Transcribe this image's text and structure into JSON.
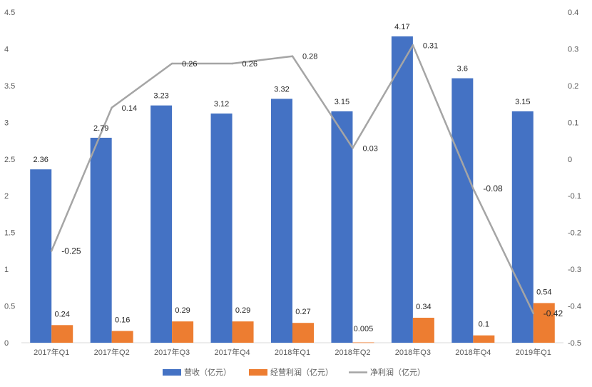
{
  "chart_data": {
    "type": "bar",
    "categories": [
      "2017年Q1",
      "2017年Q2",
      "2017年Q3",
      "2017年Q4",
      "2018年Q1",
      "2018年Q2",
      "2018年Q3",
      "2018年Q4",
      "2019年Q1"
    ],
    "series": [
      {
        "name": "营收（亿元）",
        "type": "bar",
        "axis": "left",
        "color": "#4472C4",
        "values": [
          2.36,
          2.79,
          3.23,
          3.12,
          3.32,
          3.15,
          4.17,
          3.6,
          3.15
        ],
        "labels": [
          "2.36",
          "2.79",
          "3.23",
          "3.12",
          "3.32",
          "3.15",
          "4.17",
          "3.6",
          "3.15"
        ]
      },
      {
        "name": "经营利润（亿元）",
        "type": "bar",
        "axis": "left",
        "color": "#ED7D31",
        "values": [
          0.24,
          0.16,
          0.29,
          0.29,
          0.27,
          0.005,
          0.34,
          0.1,
          0.54
        ],
        "labels": [
          "0.24",
          "0.16",
          "0.29",
          "0.29",
          "0.27",
          "0.005",
          "0.34",
          "0.1",
          "0.54"
        ]
      },
      {
        "name": "净利润（亿元）",
        "type": "line",
        "axis": "right",
        "color": "#A5A5A5",
        "values": [
          -0.25,
          0.14,
          0.26,
          0.26,
          0.28,
          0.03,
          0.31,
          -0.08,
          -0.42
        ],
        "labels": [
          "-0.25",
          "0.14",
          "0.26",
          "0.26",
          "0.28",
          "0.03",
          "0.31",
          "-0.08",
          "-0.42"
        ]
      }
    ],
    "left_axis": {
      "ylim": [
        0,
        4.5
      ],
      "ticks": [
        "0",
        "0.5",
        "1",
        "1.5",
        "2",
        "2.5",
        "3",
        "3.5",
        "4",
        "4.5"
      ]
    },
    "right_axis": {
      "ylim": [
        -0.5,
        0.4
      ],
      "ticks": [
        "-0.5",
        "-0.4",
        "-0.3",
        "-0.2",
        "-0.1",
        "0",
        "0.1",
        "0.2",
        "0.3",
        "0.4"
      ]
    },
    "grid": false,
    "legend_position": "bottom"
  }
}
